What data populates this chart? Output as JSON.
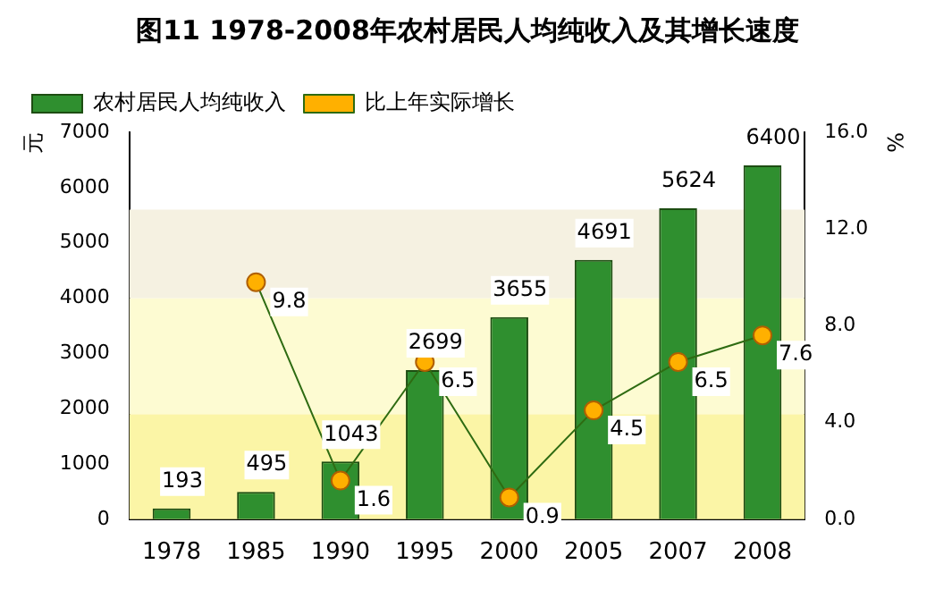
{
  "chart_data": {
    "type": "bar",
    "title": "图11  1978-2008年农村居民人均纯收入及其增长速度",
    "ylabel": "元",
    "y2label": "%",
    "categories": [
      "1978",
      "1985",
      "1990",
      "1995",
      "2000",
      "2005",
      "2007",
      "2008"
    ],
    "series": [
      {
        "name": "农村居民人均纯收入",
        "color": "#2f8f2f",
        "values": [
          193,
          495,
          1043,
          2699,
          3655,
          4691,
          5624,
          6400
        ]
      },
      {
        "name": "比上年实际增长",
        "type": "line",
        "axis": "y2",
        "color": "#2e6b12",
        "marker": "circle",
        "values": [
          null,
          9.8,
          1.6,
          6.5,
          0.9,
          4.5,
          6.5,
          7.6
        ]
      }
    ],
    "ylim": [
      0,
      7000
    ],
    "yticks": [
      0,
      1000,
      2000,
      3000,
      4000,
      5000,
      6000,
      7000
    ],
    "y2lim": [
      0,
      16
    ],
    "y2ticks": [
      {
        "value": 0,
        "label": "0.0"
      },
      {
        "value": 4,
        "label": "4.0"
      },
      {
        "value": 8,
        "label": "8.0"
      },
      {
        "value": 12,
        "label": "12.0"
      },
      {
        "value": 16,
        "label": "16.0"
      }
    ],
    "bands": [
      {
        "axis": "y",
        "from": 0,
        "to": 1900,
        "color": "#fbf5a6"
      },
      {
        "axis": "y",
        "from": 1900,
        "to": 4000,
        "color": "#fdfbd2"
      },
      {
        "axis": "y",
        "from": 4000,
        "to": 5600,
        "color": "#f5f1e1"
      }
    ],
    "grid": false,
    "legend": "top left",
    "data_labels": true
  }
}
